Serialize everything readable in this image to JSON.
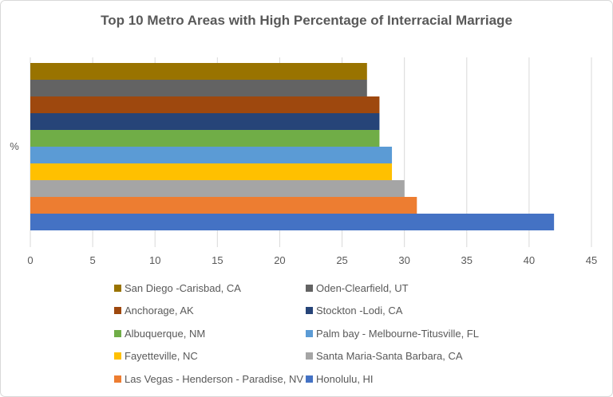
{
  "chart_data": {
    "type": "bar",
    "orientation": "horizontal",
    "title": "Top 10  Metro Areas with High Percentage of Interracial Marriage",
    "category_label": "%",
    "xlim": [
      0,
      45
    ],
    "xticks": [
      0,
      5,
      10,
      15,
      20,
      25,
      30,
      35,
      40,
      45
    ],
    "grid": true,
    "legend_position": "bottom",
    "series": [
      {
        "name": "San Diego -Carisbad, CA",
        "value": 27,
        "color": "#997300"
      },
      {
        "name": "Oden-Clearfield, UT",
        "value": 27,
        "color": "#636363"
      },
      {
        "name": "Anchorage, AK",
        "value": 28,
        "color": "#9e480e"
      },
      {
        "name": "Stockton -Lodi, CA",
        "value": 28,
        "color": "#264478"
      },
      {
        "name": "Albuquerque, NM",
        "value": 28,
        "color": "#70ad47"
      },
      {
        "name": "Palm bay - Melbourne-Titusville, FL",
        "value": 29,
        "color": "#5b9bd5"
      },
      {
        "name": "Fayetteville, NC",
        "value": 29,
        "color": "#ffc000"
      },
      {
        "name": "Santa Maria-Santa Barbara, CA",
        "value": 30,
        "color": "#a5a5a5"
      },
      {
        "name": "Las Vegas - Henderson - Paradise, NV",
        "value": 31,
        "color": "#ed7d31"
      },
      {
        "name": "Honolulu, HI",
        "value": 42,
        "color": "#4472c4"
      }
    ]
  }
}
